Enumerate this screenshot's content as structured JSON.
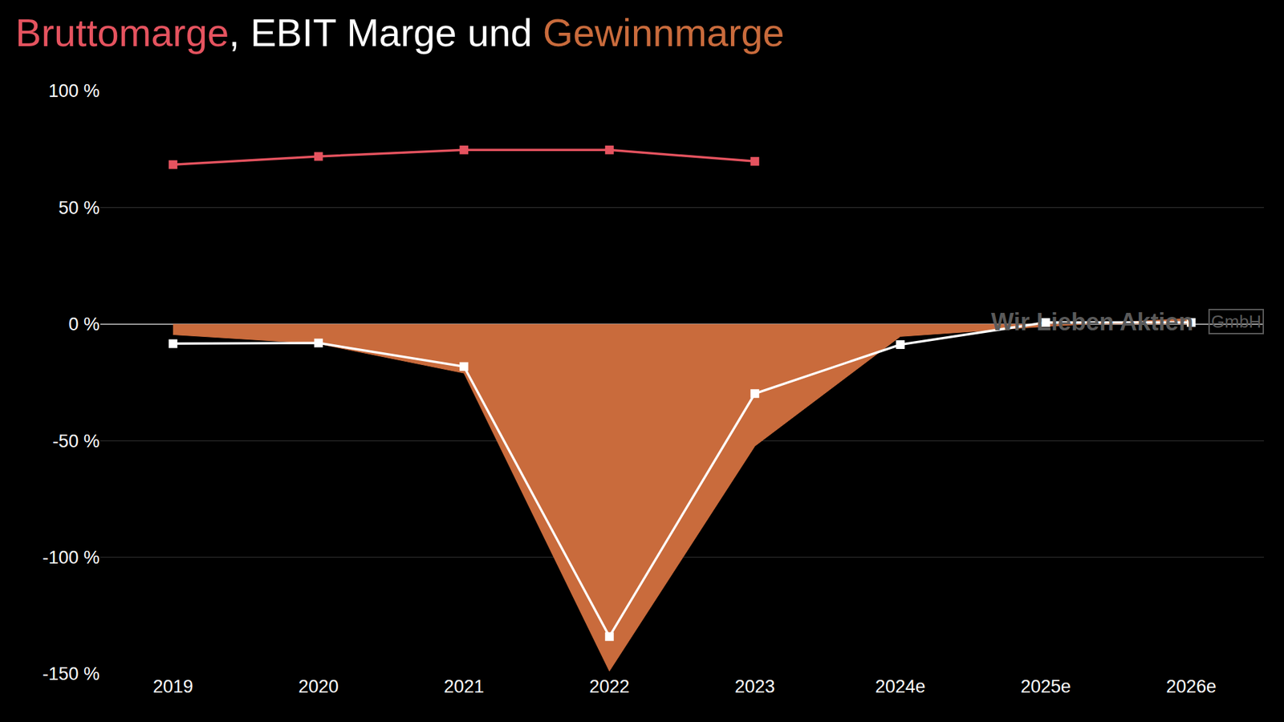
{
  "chart_data": {
    "type": "line",
    "title": "Bruttomarge, EBIT Marge und Gewinnmarge",
    "categories": [
      "2019",
      "2020",
      "2021",
      "2022",
      "2023",
      "2024e",
      "2025e",
      "2026e"
    ],
    "series": [
      {
        "name": "Gewinnmarge",
        "color": "#c96b3c",
        "type": "area",
        "values": [
          -4.5,
          -8.4,
          -21.0,
          -148.8,
          -52.3,
          -5.3,
          -1.0,
          2.5
        ]
      },
      {
        "name": "Bruttomarge",
        "color": "#e5535f",
        "type": "line",
        "marker": "square",
        "values": [
          68.4,
          71.9,
          74.7,
          74.7,
          69.8,
          null,
          null,
          null
        ]
      },
      {
        "name": "EBIT Marge",
        "color": "#ffffff",
        "type": "line",
        "marker": "square",
        "values": [
          -8.4,
          -8.1,
          -18.2,
          -134.0,
          -29.8,
          -8.8,
          0.7,
          0.7
        ]
      }
    ],
    "ylim": [
      -150,
      100
    ],
    "yticks": [
      {
        "value": 100,
        "label": "100 %"
      },
      {
        "value": 50,
        "label": "50 %"
      },
      {
        "value": 0,
        "label": "0 %"
      },
      {
        "value": -50,
        "label": "-50 %"
      },
      {
        "value": -100,
        "label": "-100 %"
      },
      {
        "value": -150,
        "label": "-150 %"
      }
    ],
    "grid": true,
    "annotations": [
      "Wir Lieben Aktien",
      "GmbH"
    ]
  }
}
